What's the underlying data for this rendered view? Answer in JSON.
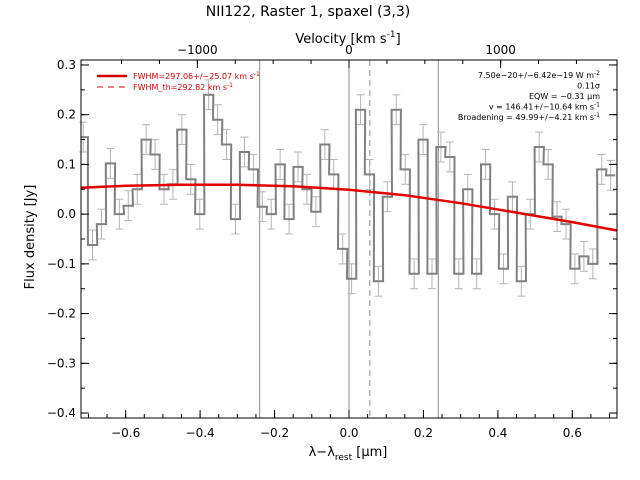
{
  "chart_data": {
    "type": "line",
    "title": "NII122, Raster 1, spaxel (3,3)",
    "xlabel": "λ−λ",
    "xlabel_sub": "rest",
    "xlabel_unit": " [μm]",
    "ylabel": "Flux density [Jy]",
    "top_axis_label_main": "Velocity [km s",
    "top_axis_label_sup": "-1",
    "top_axis_label_end": "]",
    "xlim": [
      -0.72,
      0.72
    ],
    "ylim": [
      -0.41,
      0.31
    ],
    "xticks": [
      -0.6,
      -0.4,
      -0.2,
      0.0,
      0.2,
      0.4,
      0.6
    ],
    "xtick_labels": [
      "−0.6",
      "−0.4",
      "−0.2",
      "0.0",
      "0.2",
      "0.4",
      "0.6"
    ],
    "yticks": [
      0.3,
      0.2,
      0.1,
      0.0,
      -0.1,
      -0.2,
      -0.3,
      -0.4
    ],
    "ytick_labels": [
      "0.3",
      "0.2",
      "0.1",
      "0.0",
      "−0.1",
      "−0.2",
      "−0.3",
      "−0.4"
    ],
    "velocity_ticks": [
      -1000,
      0,
      1000
    ],
    "velocity_tick_labels": [
      "−1000",
      "0",
      "1000"
    ],
    "vertical_lines_solid": [
      -0.24,
      0.0,
      0.24
    ],
    "vertical_lines_dashed": [
      0.056
    ],
    "legend": {
      "placement": "top-left",
      "entries": [
        {
          "style": "solid",
          "text": "FWHM=297.06+/−25.07 km s",
          "sup": "-1"
        },
        {
          "style": "dashed",
          "text": "FWHM_th=292.82 km s",
          "sup": "-1"
        }
      ]
    },
    "annotations": [
      {
        "text": "7.50e−20+/−6.42e−19 W m",
        "sup": "-2"
      },
      {
        "text": "0.11σ",
        "sup": ""
      },
      {
        "text": "EQW = −0.31 μm",
        "sup": ""
      },
      {
        "text": "v = 146.41+/−10.64 km s",
        "sup": "-1"
      },
      {
        "text": "Broadening = 49.99+/−4.21 km s",
        "sup": "-1"
      }
    ],
    "series": [
      {
        "name": "spectrum",
        "style": "histogram",
        "color": "#808080",
        "x": [
          -0.714,
          -0.689,
          -0.665,
          -0.641,
          -0.617,
          -0.593,
          -0.569,
          -0.545,
          -0.521,
          -0.497,
          -0.473,
          -0.449,
          -0.425,
          -0.401,
          -0.377,
          -0.353,
          -0.329,
          -0.305,
          -0.281,
          -0.257,
          -0.233,
          -0.209,
          -0.185,
          -0.161,
          -0.137,
          -0.113,
          -0.089,
          -0.065,
          -0.041,
          -0.017,
          0.007,
          0.031,
          0.055,
          0.079,
          0.103,
          0.127,
          0.151,
          0.175,
          0.199,
          0.223,
          0.247,
          0.271,
          0.295,
          0.319,
          0.343,
          0.367,
          0.391,
          0.415,
          0.439,
          0.463,
          0.487,
          0.511,
          0.535,
          0.559,
          0.583,
          0.607,
          0.631,
          0.655,
          0.679,
          0.703
        ],
        "y": [
          0.155,
          -0.062,
          -0.02,
          0.102,
          0.0,
          0.017,
          0.05,
          0.15,
          0.12,
          0.05,
          0.06,
          0.17,
          0.07,
          0.0,
          0.24,
          0.19,
          0.14,
          -0.01,
          0.125,
          0.09,
          0.015,
          0.0,
          0.1,
          -0.01,
          0.095,
          0.05,
          0.005,
          0.14,
          0.08,
          -0.07,
          -0.13,
          0.21,
          0.08,
          -0.135,
          0.035,
          0.21,
          0.09,
          -0.12,
          0.15,
          -0.12,
          0.135,
          0.115,
          -0.12,
          0.05,
          -0.12,
          0.1,
          0.0,
          -0.11,
          0.035,
          -0.135,
          0.0,
          0.135,
          0.1,
          -0.005,
          -0.02,
          -0.11,
          -0.085,
          -0.1,
          0.09,
          0.078
        ],
        "err": 0.03
      },
      {
        "name": "fit",
        "style": "smooth",
        "color": "#e00000",
        "x": [
          -0.72,
          -0.6,
          -0.45,
          -0.3,
          -0.15,
          0.0,
          0.15,
          0.3,
          0.45,
          0.6,
          0.72
        ],
        "y": [
          0.053,
          0.057,
          0.059,
          0.059,
          0.056,
          0.049,
          0.038,
          0.022,
          0.003,
          -0.016,
          -0.033
        ]
      }
    ]
  }
}
